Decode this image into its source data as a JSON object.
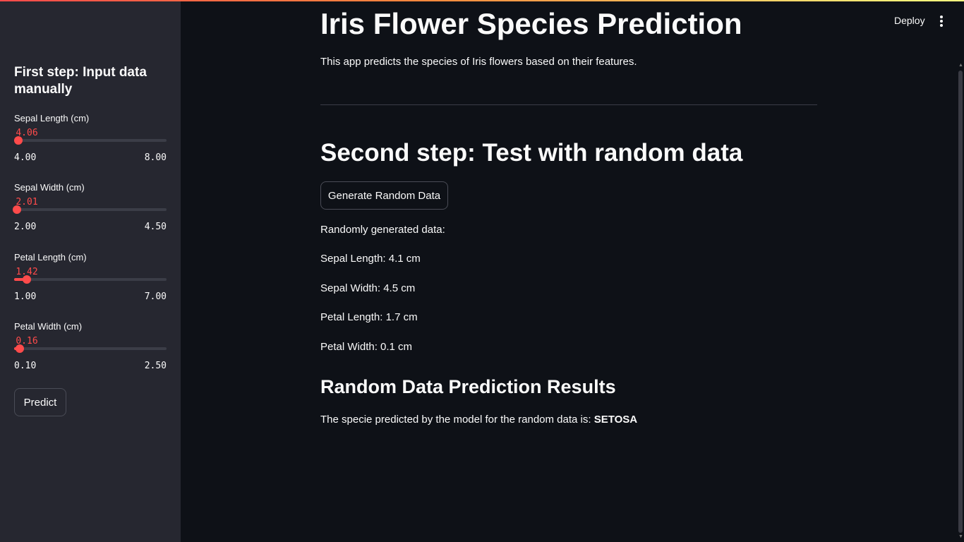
{
  "app": {
    "title": "Iris Flower Species Prediction",
    "description": "This app predicts the species of Iris flowers based on their features.",
    "deploy_label": "Deploy",
    "accent_color": "#ff4b4b",
    "menu_icon": "vertical-ellipsis-icon"
  },
  "sidebar": {
    "header": "First step: Input data manually",
    "sliders": [
      {
        "label": "Sepal Length (cm)",
        "value": "4.06",
        "min": "4.00",
        "max": "8.00",
        "value_num": 4.06,
        "min_num": 4.0,
        "max_num": 8.0
      },
      {
        "label": "Sepal Width (cm)",
        "value": "2.01",
        "min": "2.00",
        "max": "4.50",
        "value_num": 2.01,
        "min_num": 2.0,
        "max_num": 4.5
      },
      {
        "label": "Petal Length (cm)",
        "value": "1.42",
        "min": "1.00",
        "max": "7.00",
        "value_num": 1.42,
        "min_num": 1.0,
        "max_num": 7.0
      },
      {
        "label": "Petal Width (cm)",
        "value": "0.16",
        "min": "0.10",
        "max": "2.50",
        "value_num": 0.16,
        "min_num": 0.1,
        "max_num": 2.5
      }
    ],
    "predict_label": "Predict"
  },
  "random_section": {
    "heading": "Second step: Test with random data",
    "button_label": "Generate Random Data",
    "intro": "Randomly generated data:",
    "lines": [
      "Sepal Length: 4.1 cm",
      "Sepal Width: 4.5 cm",
      "Petal Length: 1.7 cm",
      "Petal Width: 0.1 cm"
    ]
  },
  "results": {
    "heading": "Random Data Prediction Results",
    "prefix": "The specie predicted by the model for the random data is: ",
    "species": "SETOSA"
  }
}
